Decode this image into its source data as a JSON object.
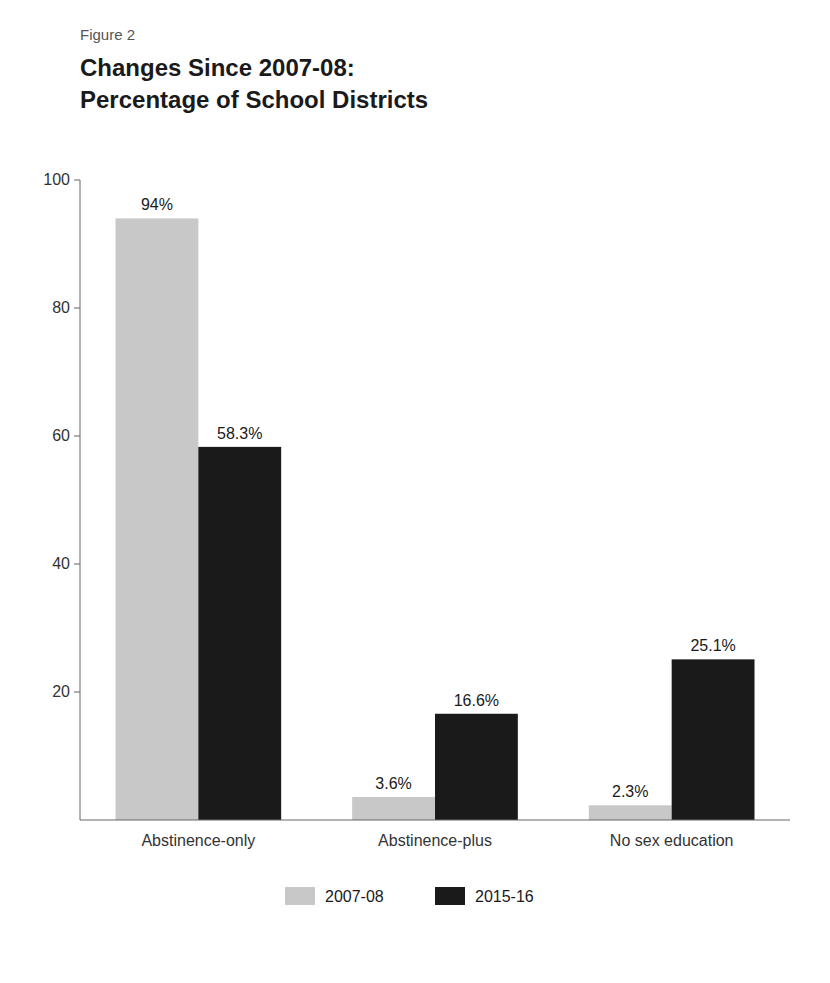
{
  "chart_data": {
    "type": "bar",
    "title": "Changes Since 2007-08:",
    "subtitle": "Percentage of School Districts",
    "annotations": [
      "Figure 2"
    ],
    "categories": [
      "Abstinence-only",
      "Abstinence-plus",
      "No sex education"
    ],
    "series": [
      {
        "name": "2007-08",
        "color": "#c8c8c8",
        "values": [
          94,
          3.6,
          2.3
        ],
        "value_labels": [
          "94%",
          "3.6%",
          "2.3%"
        ]
      },
      {
        "name": "2015-16",
        "color": "#1a1a1a",
        "values": [
          58.3,
          16.6,
          25.1
        ],
        "value_labels": [
          "58.3%",
          "16.6%",
          "25.1%"
        ]
      }
    ],
    "ylim": [
      0,
      100
    ],
    "yticks": [
      20,
      40,
      60,
      80,
      100
    ],
    "grid": false,
    "legend": "bottom",
    "data_labels": true
  }
}
